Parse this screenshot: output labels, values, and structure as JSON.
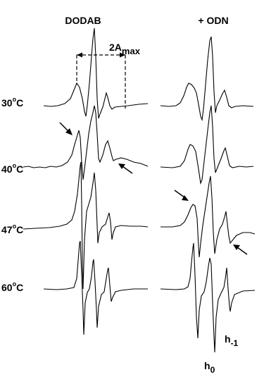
{
  "figure": {
    "panels": [
      {
        "title": "DODAB"
      },
      {
        "title": "+ ODN"
      }
    ],
    "temperatures": [
      {
        "value": "30",
        "unit": "C"
      },
      {
        "value": "40",
        "unit": "C"
      },
      {
        "value": "47",
        "unit": "C"
      },
      {
        "value": "60",
        "unit": "C"
      }
    ],
    "annotations": {
      "amax_base": "2A",
      "amax_sub": "max",
      "h0_base": "h",
      "h0_sub": "0",
      "hm1_base": "h",
      "hm1_sub": "-1"
    }
  },
  "chart_data": {
    "type": "line",
    "title": "",
    "xlabel": "",
    "ylabel": "",
    "grid": false,
    "legend": "none",
    "panels": [
      "DODAB",
      "+ ODN"
    ],
    "series": [
      {
        "name": "30°C"
      },
      {
        "name": "40°C"
      },
      {
        "name": "47°C"
      },
      {
        "name": "60°C"
      }
    ]
  }
}
